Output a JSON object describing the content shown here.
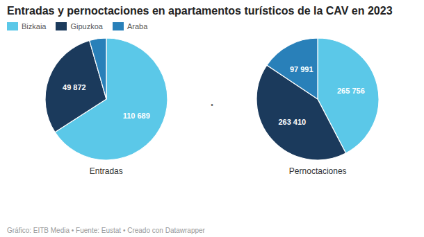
{
  "chart_data": {
    "type": "pie",
    "title": "Entradas y pernoctaciones en apartamentos turísticos de la CAV en 2023",
    "categories": [
      "Bizkaia",
      "Gipuzkoa",
      "Araba"
    ],
    "colors": [
      "#5bc8e8",
      "#1b3a5c",
      "#2980b9"
    ],
    "series": [
      {
        "name": "Entradas",
        "values": [
          110689,
          49872,
          7500
        ],
        "value_labels": [
          "110 689",
          "49 872",
          null
        ]
      },
      {
        "name": "Pernoctaciones",
        "values": [
          265756,
          263410,
          97991
        ],
        "value_labels": [
          "265 756",
          "263 410",
          "97 991"
        ]
      }
    ],
    "data_labels": true,
    "legend": "top-left",
    "annotations": [
      "Gráfico: EITB Media • Fuente: Eustat • Creado con Datawrapper",
      "•"
    ]
  }
}
